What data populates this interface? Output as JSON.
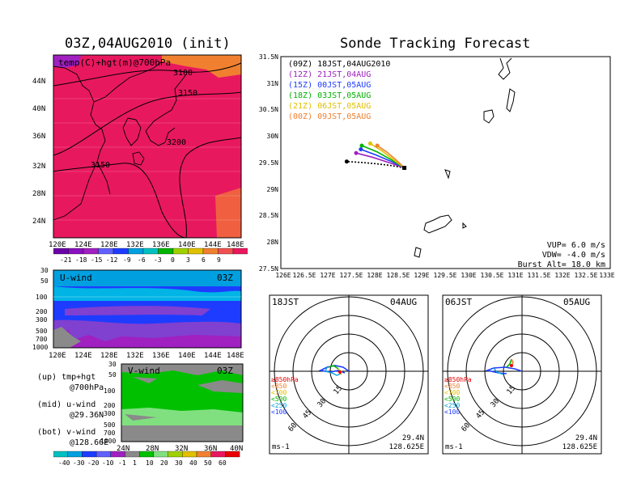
{
  "titles": {
    "left": "03Z,04AUG2010 (init)",
    "right": "Sonde Tracking Forecast"
  },
  "temp_map": {
    "label": "temp(C)+hgt(m)@700hPa",
    "x_ticks": [
      "120E",
      "124E",
      "128E",
      "132E",
      "136E",
      "140E",
      "144E",
      "148E"
    ],
    "y_ticks": [
      "44N",
      "40N",
      "36N",
      "32N",
      "28N",
      "24N"
    ],
    "contours": [
      "3100",
      "3150",
      "3200",
      "3150"
    ],
    "colorbar": [
      "-21",
      "-18",
      "-15",
      "-12",
      "-9",
      "-6",
      "-3",
      "0",
      "3",
      "6",
      "9"
    ],
    "colors": {
      "main": "#e8185f",
      "warm": "#f08030",
      "cool": "#a020c0"
    }
  },
  "u_wind": {
    "label": "U-wind",
    "time": "03Z",
    "y_ticks": [
      "30",
      "50",
      "100",
      "200",
      "300",
      "500",
      "700",
      "1000"
    ],
    "x_ticks": [
      "120E",
      "124E",
      "128E",
      "132E",
      "136E",
      "140E",
      "144E",
      "148E"
    ]
  },
  "v_wind": {
    "label": "V-wind",
    "time": "03Z",
    "y_ticks": [
      "30",
      "50",
      "100",
      "200",
      "300",
      "500",
      "700",
      "1000"
    ],
    "x_ticks": [
      "24N",
      "28N",
      "32N",
      "36N",
      "40N"
    ],
    "colorbar": [
      "-40",
      "-30",
      "-20",
      "-10",
      "-1",
      "1",
      "10",
      "20",
      "30",
      "40",
      "50",
      "60"
    ]
  },
  "side_notes": {
    "up": "(up) tmp+hgt",
    "up2": "@700hPa",
    "mid": "(mid) u-wind",
    "mid2": "@29.36N",
    "bot": "(bot) v-wind",
    "bot2": "@128.66E"
  },
  "tracking": {
    "legend": [
      {
        "text": "(09Z) 18JST,04AUG2010",
        "color": "#000000"
      },
      {
        "text": "(12Z) 21JST,04AUG",
        "color": "#a020c0"
      },
      {
        "text": "(15Z) 00JST,05AUG",
        "color": "#1e3cff"
      },
      {
        "text": "(18Z) 03JST,05AUG",
        "color": "#00b400"
      },
      {
        "text": "(21Z) 06JST,05AUG",
        "color": "#e0c000"
      },
      {
        "text": "(00Z) 09JST,05AUG",
        "color": "#f08030"
      }
    ],
    "x_ticks": [
      "126E",
      "126.5E",
      "127E",
      "127.5E",
      "128E",
      "128.5E",
      "129E",
      "129.5E",
      "130E",
      "130.5E",
      "131E",
      "131.5E",
      "132E",
      "132.5E",
      "133E"
    ],
    "y_ticks": [
      "31.5N",
      "31N",
      "30.5N",
      "30N",
      "29.5N",
      "29N",
      "28.5N",
      "28N",
      "27.5N"
    ],
    "params": {
      "vup": "VUP= 6.0 m/s",
      "vdw": "VDW= -4.0 m/s",
      "burst": "Burst Alt= 18.0 km"
    }
  },
  "chart_data": {
    "type": "line",
    "xlabel": "",
    "ylabel": "",
    "xlim": [
      126,
      133
    ],
    "ylim": [
      27.5,
      31.5
    ],
    "origin": {
      "lon": 128.625,
      "lat": 29.4
    },
    "series": [
      {
        "name": "(09Z) 18JST,04AUG2010",
        "color": "#000000",
        "points": [
          [
            128.625,
            29.4
          ],
          [
            128.3,
            29.45
          ],
          [
            128.0,
            29.48
          ],
          [
            127.75,
            29.5
          ],
          [
            127.4,
            29.52
          ]
        ]
      },
      {
        "name": "(12Z) 21JST,04AUG",
        "color": "#a020c0",
        "points": [
          [
            128.625,
            29.4
          ],
          [
            128.3,
            29.5
          ],
          [
            127.95,
            29.6
          ],
          [
            127.6,
            29.68
          ]
        ]
      },
      {
        "name": "(15Z) 00JST,05AUG",
        "color": "#1e3cff",
        "points": [
          [
            128.625,
            29.4
          ],
          [
            128.35,
            29.52
          ],
          [
            128.0,
            29.65
          ],
          [
            127.7,
            29.75
          ]
        ]
      },
      {
        "name": "(18Z) 03JST,05AUG",
        "color": "#00b400",
        "points": [
          [
            128.625,
            29.4
          ],
          [
            128.35,
            29.55
          ],
          [
            128.05,
            29.7
          ],
          [
            127.72,
            29.82
          ]
        ]
      },
      {
        "name": "(21Z) 06JST,05AUG",
        "color": "#e0c000",
        "points": [
          [
            128.625,
            29.4
          ],
          [
            128.4,
            29.55
          ],
          [
            128.15,
            29.72
          ],
          [
            127.9,
            29.86
          ]
        ]
      },
      {
        "name": "(00Z) 09JST,05AUG",
        "color": "#f08030",
        "points": [
          [
            128.625,
            29.4
          ],
          [
            128.45,
            29.55
          ],
          [
            128.25,
            29.7
          ],
          [
            128.05,
            29.82
          ]
        ]
      }
    ]
  },
  "hodographs": [
    {
      "time": "18JST",
      "date": "04AUG",
      "lat": "29.4N",
      "lon": "128.625E",
      "unit": "ms-1",
      "rings": [
        "15",
        "30",
        "45",
        "60"
      ],
      "levels": [
        "≥850hPa",
        "<850",
        "<700",
        "<500",
        "<250",
        "<100"
      ],
      "level_colors": [
        "#e80000",
        "#f08030",
        "#e0c000",
        "#00b400",
        "#00a0e0",
        "#1e3cff"
      ]
    },
    {
      "time": "06JST",
      "date": "05AUG",
      "lat": "29.4N",
      "lon": "128.625E",
      "unit": "ms-1",
      "rings": [
        "15",
        "30",
        "45",
        "60"
      ],
      "levels": [
        "≥850hPa",
        "<850",
        "<700",
        "<500",
        "<250",
        "<100"
      ],
      "level_colors": [
        "#e80000",
        "#f08030",
        "#e0c000",
        "#00b400",
        "#00a0e0",
        "#1e3cff"
      ]
    }
  ]
}
